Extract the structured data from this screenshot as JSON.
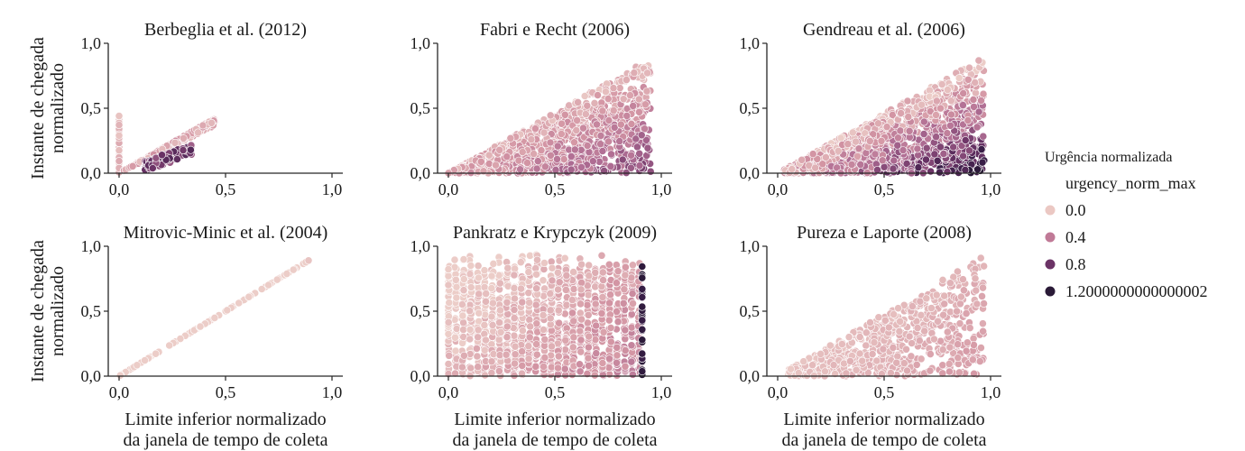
{
  "figure": {
    "y_label_lines": [
      "Instante de chegada",
      "normalizado"
    ],
    "x_label_lines": [
      "Limite inferior normalizado",
      "da janela de tempo de coleta"
    ],
    "tick_labels": [
      "0,0",
      "0,5",
      "1,0"
    ]
  },
  "legend": {
    "title": "Urgência normalizada",
    "subtitle": "urgency_norm_max",
    "entries": [
      {
        "label": "0.0",
        "color": "#ebc8c3"
      },
      {
        "label": "0.4",
        "color": "#c07a97"
      },
      {
        "label": "0.8",
        "color": "#6b3366"
      },
      {
        "label": "1.2000000000000002",
        "color": "#2a1a37"
      }
    ]
  },
  "chart_data": [
    {
      "type": "scatter",
      "title": "Berbeglia et al. (2012)",
      "xlim": [
        0,
        1
      ],
      "ylim": [
        0,
        1
      ],
      "xticks": [
        0,
        0.5,
        1
      ],
      "yticks": [
        0,
        0.5,
        1
      ],
      "hue": "urgency_norm_max"
    },
    {
      "type": "scatter",
      "title": "Fabri e Recht (2006)",
      "xlim": [
        0,
        1
      ],
      "ylim": [
        0,
        1
      ],
      "xticks": [
        0,
        0.5,
        1
      ],
      "yticks": [
        0,
        0.5,
        1
      ],
      "hue": "urgency_norm_max"
    },
    {
      "type": "scatter",
      "title": "Gendreau et al. (2006)",
      "xlim": [
        0,
        1
      ],
      "ylim": [
        0,
        1
      ],
      "xticks": [
        0,
        0.5,
        1
      ],
      "yticks": [
        0,
        0.5,
        1
      ],
      "hue": "urgency_norm_max"
    },
    {
      "type": "scatter",
      "title": "Mitrovic-Minic et al. (2004)",
      "xlim": [
        0,
        1
      ],
      "ylim": [
        0,
        1
      ],
      "xticks": [
        0,
        0.5,
        1
      ],
      "yticks": [
        0,
        0.5,
        1
      ],
      "hue": "urgency_norm_max"
    },
    {
      "type": "scatter",
      "title": "Pankratz e Krypczyk (2009)",
      "xlim": [
        0,
        1
      ],
      "ylim": [
        0,
        1
      ],
      "xticks": [
        0,
        0.5,
        1
      ],
      "yticks": [
        0,
        0.5,
        1
      ],
      "hue": "urgency_norm_max"
    },
    {
      "type": "scatter",
      "title": "Pureza e Laporte (2008)",
      "xlim": [
        0,
        1
      ],
      "ylim": [
        0,
        1
      ],
      "xticks": [
        0,
        0.5,
        1
      ],
      "yticks": [
        0,
        0.5,
        1
      ],
      "hue": "urgency_norm_max"
    }
  ]
}
